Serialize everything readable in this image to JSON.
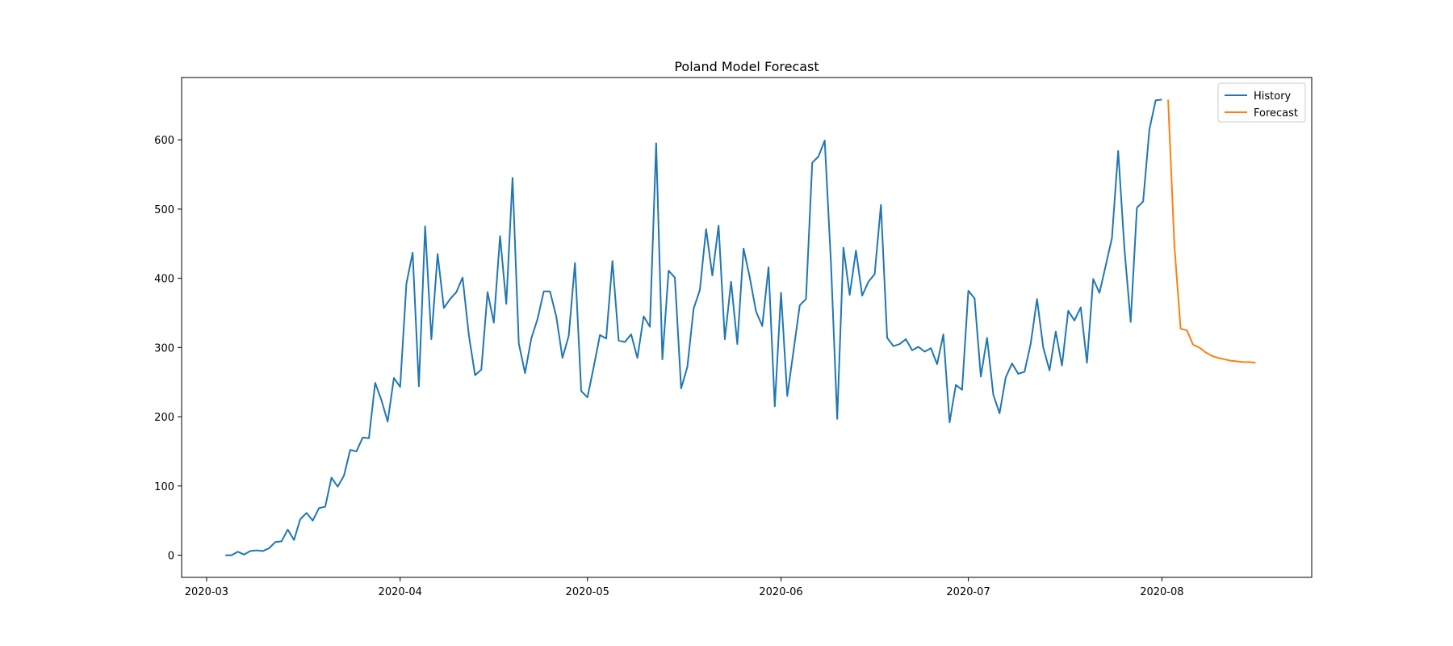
{
  "chart_data": {
    "type": "line",
    "title": "Poland Model Forecast",
    "xlabel": "",
    "ylabel": "",
    "x_start_date": "2020-03-04",
    "x_unit": "day",
    "xlim_days": [
      -7,
      174
    ],
    "ylim": [
      -32,
      690
    ],
    "x_ticks": [
      {
        "day": -3,
        "label": "2020-03"
      },
      {
        "day": 28,
        "label": "2020-04"
      },
      {
        "day": 58,
        "label": "2020-05"
      },
      {
        "day": 89,
        "label": "2020-06"
      },
      {
        "day": 119,
        "label": "2020-07"
      },
      {
        "day": 150,
        "label": "2020-08"
      }
    ],
    "y_ticks": [
      0,
      100,
      200,
      300,
      400,
      500,
      600
    ],
    "legend": {
      "position": "top-right",
      "entries": [
        "History",
        "Forecast"
      ]
    },
    "series": [
      {
        "name": "History",
        "color": "#1f77b4",
        "start_day": 0,
        "values": [
          0,
          0,
          5,
          1,
          6,
          7,
          6,
          10,
          19,
          20,
          37,
          22,
          52,
          61,
          50,
          68,
          70,
          112,
          99,
          115,
          152,
          150,
          170,
          169,
          249,
          224,
          193,
          256,
          243,
          392,
          437,
          244,
          475,
          312,
          435,
          357,
          370,
          380,
          401,
          318,
          260,
          268,
          380,
          336,
          461,
          363,
          545,
          306,
          263,
          313,
          341,
          381,
          381,
          345,
          285,
          317,
          422,
          237,
          228,
          272,
          318,
          313,
          425,
          310,
          308,
          319,
          285,
          345,
          330,
          595,
          283,
          411,
          401,
          241,
          272,
          356,
          383,
          471,
          404,
          476,
          312,
          395,
          305,
          443,
          401,
          352,
          331,
          416,
          215,
          379,
          230,
          295,
          361,
          370,
          567,
          576,
          599,
          422,
          197,
          444,
          376,
          440,
          375,
          395,
          406,
          506,
          314,
          302,
          305,
          312,
          296,
          301,
          294,
          299,
          276,
          319,
          192,
          246,
          239,
          382,
          371,
          258,
          314,
          232,
          205,
          257,
          277,
          262,
          265,
          306,
          370,
          300,
          267,
          323,
          274,
          353,
          339,
          358,
          278,
          399,
          379,
          418,
          458,
          584,
          443,
          337,
          502,
          511,
          615,
          657,
          658
        ]
      },
      {
        "name": "Forecast",
        "color": "#ff7f0e",
        "start_day": 151,
        "values": [
          658,
          448,
          327,
          325,
          304,
          300,
          293,
          288,
          285,
          283,
          281,
          280,
          279,
          279,
          278
        ]
      }
    ]
  }
}
